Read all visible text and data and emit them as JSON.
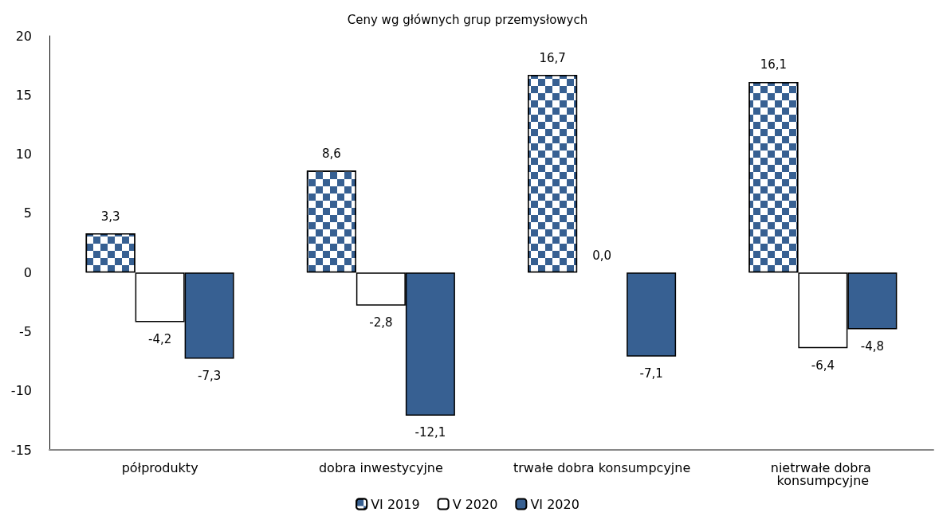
{
  "chart_data": {
    "type": "bar",
    "title": "Ceny wg głównych grup przemysłowych",
    "categories": [
      "półprodukty",
      "dobra inwestycyjne",
      "trwałe dobra konsumpcyjne",
      "nietrwałe dobra konsumpcyjne"
    ],
    "series": [
      {
        "name": "VI 2019",
        "color": "#376092",
        "values": [
          3.3,
          8.6,
          16.7,
          16.1
        ],
        "value_labels": [
          "3,3",
          "8,6",
          "16,7",
          "16,1"
        ]
      },
      {
        "name": "V 2020",
        "color": "#ffffff",
        "values": [
          -4.2,
          -2.8,
          0.0,
          -6.4
        ],
        "value_labels": [
          "-4,2",
          "-2,8",
          "0,0",
          "-6,4"
        ]
      },
      {
        "name": "VI 2020",
        "color": "#376092",
        "values": [
          -7.3,
          -12.1,
          -7.1,
          -4.8
        ],
        "value_labels": [
          "-7,3",
          "-12,1",
          "-7,1",
          "-4,8"
        ]
      }
    ],
    "ylim": [
      -15,
      20
    ],
    "yticks": [
      -15,
      -10,
      -5,
      0,
      5,
      10,
      15,
      20
    ],
    "grid": false,
    "legend": "bottom"
  }
}
